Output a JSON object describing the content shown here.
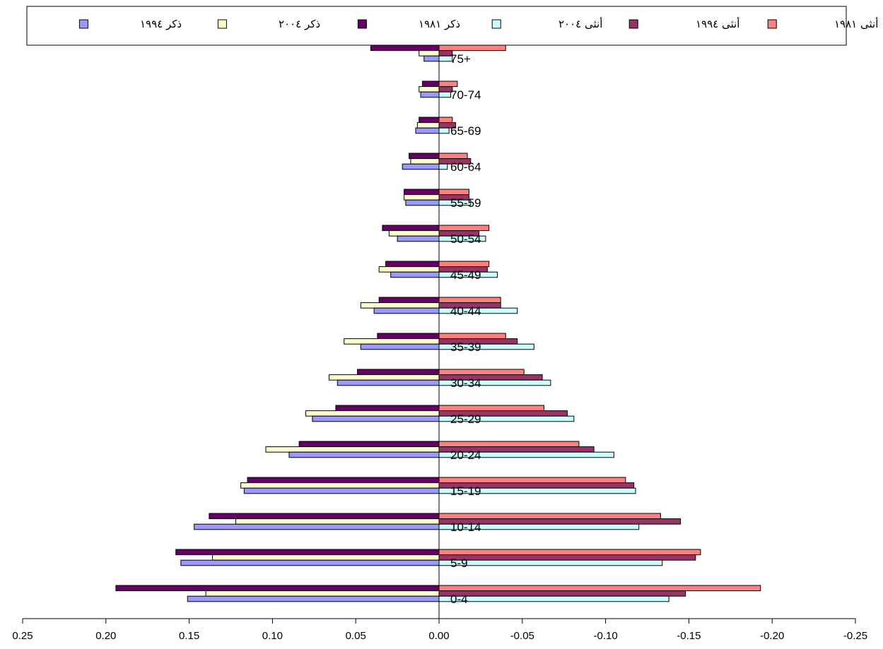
{
  "chart_data": {
    "type": "bar",
    "orientation": "horizontal",
    "x_axis_reversed": true,
    "categories": [
      "0-4",
      "5-9",
      "10-14",
      "15-19",
      "20-24",
      "25-29",
      "30-34",
      "35-39",
      "40-44",
      "45-49",
      "50-54",
      "55-59",
      "60-64",
      "65-69",
      "70-74",
      "75+"
    ],
    "xlim": [
      -0.25,
      0.25
    ],
    "x_ticks": [
      "0.25",
      "0.20",
      "0.15",
      "0.10",
      "0.05",
      "0.00",
      "-0.05",
      "-0.10",
      "-0.15",
      "-0.20",
      "-0.25"
    ],
    "grid": false,
    "legend_position": "top",
    "series": [
      {
        "name": "أنثى ١٩٨١",
        "color": "#ff8080",
        "values": [
          -0.193,
          -0.157,
          -0.133,
          -0.112,
          -0.084,
          -0.063,
          -0.051,
          -0.04,
          -0.037,
          -0.03,
          -0.03,
          -0.018,
          -0.017,
          -0.008,
          -0.011,
          -0.04
        ]
      },
      {
        "name": "أنثى ١٩٩٤",
        "color": "#993366",
        "values": [
          -0.148,
          -0.154,
          -0.145,
          -0.117,
          -0.093,
          -0.077,
          -0.062,
          -0.047,
          -0.037,
          -0.029,
          -0.024,
          -0.018,
          -0.019,
          -0.01,
          -0.008,
          -0.008
        ]
      },
      {
        "name": "أنثى ٢٠٠٤",
        "color": "#ccffff",
        "values": [
          -0.138,
          -0.134,
          -0.12,
          -0.118,
          -0.105,
          -0.081,
          -0.067,
          -0.057,
          -0.047,
          -0.035,
          -0.028,
          -0.019,
          -0.005,
          -0.006,
          -0.007,
          -0.008
        ]
      },
      {
        "name": "ذكر ١٩٨١",
        "color": "#660066",
        "values": [
          0.194,
          0.158,
          0.138,
          0.115,
          0.084,
          0.062,
          0.049,
          0.037,
          0.036,
          0.032,
          0.034,
          0.021,
          0.018,
          0.012,
          0.01,
          0.041
        ]
      },
      {
        "name": "ذكر ٢٠٠٤",
        "color": "#ffffcc",
        "values": [
          0.14,
          0.136,
          0.122,
          0.119,
          0.104,
          0.08,
          0.066,
          0.057,
          0.047,
          0.036,
          0.03,
          0.021,
          0.017,
          0.013,
          0.012,
          0.012
        ]
      },
      {
        "name": "ذكر ١٩٩٤",
        "color": "#9999ff",
        "values": [
          0.151,
          0.155,
          0.147,
          0.117,
          0.09,
          0.076,
          0.061,
          0.047,
          0.039,
          0.029,
          0.025,
          0.02,
          0.022,
          0.014,
          0.011,
          0.009
        ]
      }
    ]
  }
}
